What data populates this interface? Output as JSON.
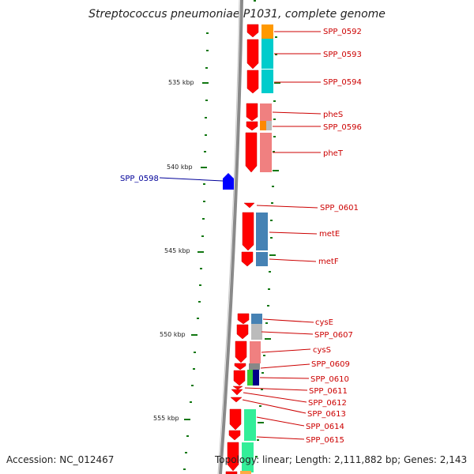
{
  "title": "Streptococcus pneumoniae P1031, complete genome",
  "footer": {
    "accession": "Accession: NC_012467",
    "topology": "Topology: linear; Length: 2,111,882 bp; Genes: 2,143"
  },
  "colors": {
    "gene_arrow": "#ff0000",
    "reverse_gene": "#0000ff",
    "label_forward": "#cc0000",
    "label_reverse": "#000099",
    "tick_dot": "#006600",
    "backbone": "#888888"
  },
  "kbp_markers": [
    {
      "label": "535 kbp"
    },
    {
      "label": "540 kbp"
    },
    {
      "label": "545 kbp"
    },
    {
      "label": "550 kbp"
    },
    {
      "label": "555 kbp"
    }
  ],
  "genes": [
    {
      "name": "SPP_0592",
      "strand": "+"
    },
    {
      "name": "SPP_0593",
      "strand": "+"
    },
    {
      "name": "SPP_0594",
      "strand": "+"
    },
    {
      "name": "pheS",
      "strand": "+"
    },
    {
      "name": "SPP_0596",
      "strand": "+"
    },
    {
      "name": "pheT",
      "strand": "+"
    },
    {
      "name": "SPP_0598",
      "strand": "-"
    },
    {
      "name": "SPP_0601",
      "strand": "+"
    },
    {
      "name": "metE",
      "strand": "+"
    },
    {
      "name": "metF",
      "strand": "+"
    },
    {
      "name": "cysE",
      "strand": "+"
    },
    {
      "name": "SPP_0607",
      "strand": "+"
    },
    {
      "name": "cysS",
      "strand": "+"
    },
    {
      "name": "SPP_0609",
      "strand": "+"
    },
    {
      "name": "SPP_0610",
      "strand": "+"
    },
    {
      "name": "SPP_0611",
      "strand": "+"
    },
    {
      "name": "SPP_0612",
      "strand": "+"
    },
    {
      "name": "SPP_0613",
      "strand": "+"
    },
    {
      "name": "SPP_0614",
      "strand": "+"
    },
    {
      "name": "SPP_0615",
      "strand": "+"
    }
  ]
}
